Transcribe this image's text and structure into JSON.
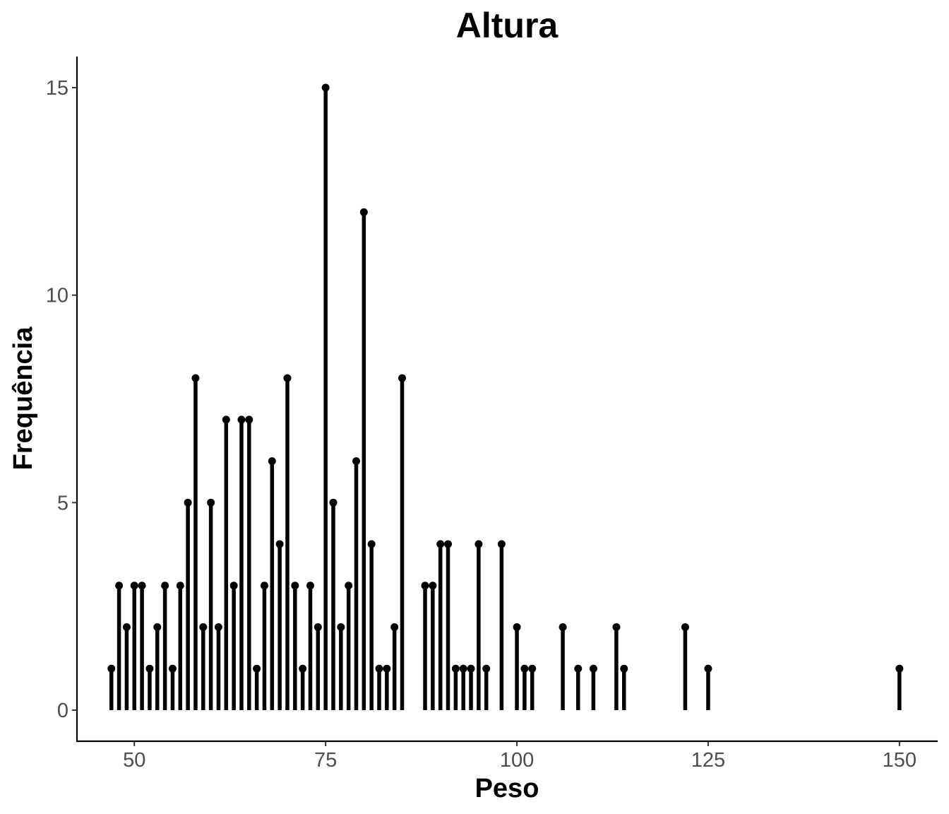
{
  "chart_data": {
    "type": "bar",
    "style": "lollipop",
    "title": "Altura",
    "xlabel": "Peso",
    "ylabel": "Frequência",
    "xlim": [
      42.5,
      155
    ],
    "ylim": [
      -0.75,
      15.75
    ],
    "xticks": [
      50,
      75,
      100,
      125,
      150
    ],
    "yticks": [
      0,
      5,
      10,
      15
    ],
    "grid": false,
    "legend": "none",
    "color": "#000000",
    "points": [
      {
        "x": 47,
        "y": 1
      },
      {
        "x": 48,
        "y": 3
      },
      {
        "x": 49,
        "y": 2
      },
      {
        "x": 50,
        "y": 3
      },
      {
        "x": 51,
        "y": 3
      },
      {
        "x": 52,
        "y": 1
      },
      {
        "x": 53,
        "y": 2
      },
      {
        "x": 54,
        "y": 3
      },
      {
        "x": 55,
        "y": 1
      },
      {
        "x": 56,
        "y": 3
      },
      {
        "x": 57,
        "y": 5
      },
      {
        "x": 58,
        "y": 8
      },
      {
        "x": 59,
        "y": 2
      },
      {
        "x": 60,
        "y": 5
      },
      {
        "x": 61,
        "y": 2
      },
      {
        "x": 62,
        "y": 7
      },
      {
        "x": 63,
        "y": 3
      },
      {
        "x": 64,
        "y": 7
      },
      {
        "x": 65,
        "y": 7
      },
      {
        "x": 66,
        "y": 1
      },
      {
        "x": 67,
        "y": 3
      },
      {
        "x": 68,
        "y": 6
      },
      {
        "x": 69,
        "y": 4
      },
      {
        "x": 70,
        "y": 8
      },
      {
        "x": 71,
        "y": 3
      },
      {
        "x": 72,
        "y": 1
      },
      {
        "x": 73,
        "y": 3
      },
      {
        "x": 74,
        "y": 2
      },
      {
        "x": 75,
        "y": 15
      },
      {
        "x": 76,
        "y": 5
      },
      {
        "x": 77,
        "y": 2
      },
      {
        "x": 78,
        "y": 3
      },
      {
        "x": 79,
        "y": 6
      },
      {
        "x": 80,
        "y": 12
      },
      {
        "x": 81,
        "y": 4
      },
      {
        "x": 82,
        "y": 1
      },
      {
        "x": 83,
        "y": 1
      },
      {
        "x": 84,
        "y": 2
      },
      {
        "x": 85,
        "y": 8
      },
      {
        "x": 88,
        "y": 3
      },
      {
        "x": 89,
        "y": 3
      },
      {
        "x": 90,
        "y": 4
      },
      {
        "x": 91,
        "y": 4
      },
      {
        "x": 92,
        "y": 1
      },
      {
        "x": 93,
        "y": 1
      },
      {
        "x": 94,
        "y": 1
      },
      {
        "x": 95,
        "y": 4
      },
      {
        "x": 96,
        "y": 1
      },
      {
        "x": 98,
        "y": 4
      },
      {
        "x": 100,
        "y": 2
      },
      {
        "x": 101,
        "y": 1
      },
      {
        "x": 102,
        "y": 1
      },
      {
        "x": 106,
        "y": 2
      },
      {
        "x": 108,
        "y": 1
      },
      {
        "x": 110,
        "y": 1
      },
      {
        "x": 113,
        "y": 2
      },
      {
        "x": 114,
        "y": 1
      },
      {
        "x": 122,
        "y": 2
      },
      {
        "x": 125,
        "y": 1
      },
      {
        "x": 150,
        "y": 1
      }
    ]
  }
}
